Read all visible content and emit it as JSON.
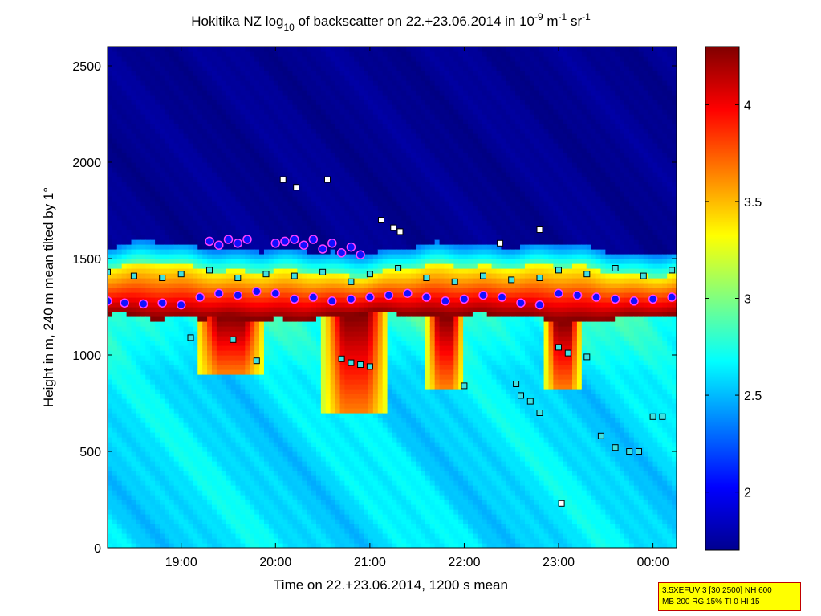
{
  "chart_data": {
    "type": "heatmap",
    "title_prefix": "Hokitika NZ log",
    "title_sub": "10",
    "title_middle": " of backscatter on 22.+23.06.2014 in 10",
    "title_exp1": "-9",
    "title_unit1": " m",
    "title_exp2": "-1",
    "title_unit2": " sr",
    "title_exp3": "-1",
    "xlabel": "Time on 22.+23.06.2014, 1200 s mean",
    "ylabel": "Height in m, 240 m mean tilted by 1°",
    "x_hours": [
      18.22,
      24.25
    ],
    "ylim": [
      0,
      2600
    ],
    "x_ticks": [
      {
        "hour": 19,
        "label": "19:00"
      },
      {
        "hour": 20,
        "label": "20:00"
      },
      {
        "hour": 21,
        "label": "21:00"
      },
      {
        "hour": 22,
        "label": "22:00"
      },
      {
        "hour": 23,
        "label": "23:00"
      },
      {
        "hour": 24,
        "label": "00:00"
      }
    ],
    "y_ticks": [
      0,
      500,
      1000,
      1500,
      2000,
      2500
    ],
    "colorbar": {
      "range": [
        1.7,
        4.3
      ],
      "ticks": [
        2,
        2.5,
        3,
        3.5,
        4
      ],
      "tick_labels": [
        "2",
        "2.5",
        "3",
        "3.5",
        "4"
      ]
    },
    "layers": {
      "cloud_top_m": 1420,
      "cloud_base_m": 1200,
      "cloud_top_value": 2.9,
      "cloud_core_value": 4.3,
      "boundary_layer_value": 2.6,
      "free_troposphere_value": 1.75
    },
    "drizzle_fall_streaks": [
      {
        "start": 19.15,
        "end": 19.9,
        "bottom_m": 900
      },
      {
        "start": 20.5,
        "end": 21.2,
        "bottom_m": 700
      },
      {
        "start": 21.6,
        "end": 22.0,
        "bottom_m": 830
      },
      {
        "start": 22.85,
        "end": 23.25,
        "bottom_m": 820
      }
    ],
    "series": [
      {
        "name": "cloud base (blue circles)",
        "hours": [
          18.22,
          18.4,
          18.6,
          18.8,
          19.0,
          19.2,
          19.4,
          19.6,
          19.8,
          20.0,
          20.2,
          20.4,
          20.6,
          20.8,
          21.0,
          21.2,
          21.4,
          21.6,
          21.8,
          22.0,
          22.2,
          22.4,
          22.6,
          22.8,
          23.0,
          23.2,
          23.4,
          23.6,
          23.8,
          24.0,
          24.2
        ],
        "height_m": [
          1280,
          1270,
          1265,
          1270,
          1260,
          1300,
          1320,
          1310,
          1330,
          1320,
          1290,
          1300,
          1280,
          1290,
          1300,
          1310,
          1320,
          1300,
          1280,
          1290,
          1310,
          1300,
          1270,
          1260,
          1320,
          1310,
          1300,
          1290,
          1280,
          1290,
          1300
        ]
      },
      {
        "name": "upper cloud base (circles)",
        "hours": [
          19.3,
          19.4,
          19.5,
          19.6,
          19.7,
          20.0,
          20.1,
          20.2,
          20.3,
          20.4,
          20.5,
          20.6,
          20.7,
          20.8,
          20.9
        ],
        "height_m": [
          1590,
          1570,
          1600,
          1580,
          1600,
          1580,
          1590,
          1600,
          1570,
          1600,
          1550,
          1580,
          1530,
          1560,
          1520
        ]
      },
      {
        "name": "cloud top (cyan squares)",
        "hours": [
          18.22,
          18.5,
          18.8,
          19.0,
          19.3,
          19.6,
          19.9,
          20.2,
          20.5,
          20.8,
          21.0,
          21.3,
          21.6,
          21.9,
          22.2,
          22.5,
          22.8,
          23.0,
          23.3,
          23.6,
          23.9,
          24.2
        ],
        "height_m": [
          1430,
          1410,
          1400,
          1420,
          1440,
          1400,
          1420,
          1410,
          1430,
          1380,
          1420,
          1450,
          1400,
          1380,
          1410,
          1390,
          1400,
          1440,
          1420,
          1450,
          1410,
          1440
        ]
      },
      {
        "name": "lower detections (cyan squares)",
        "hours": [
          19.1,
          19.55,
          19.8,
          20.7,
          20.8,
          20.9,
          21.0,
          22.0,
          22.55,
          22.6,
          22.7,
          22.8,
          23.0,
          23.1,
          23.3,
          23.45,
          23.6,
          23.75,
          23.85,
          24.0,
          24.1
        ],
        "height_m": [
          1090,
          1080,
          970,
          980,
          960,
          950,
          940,
          840,
          850,
          790,
          760,
          700,
          1040,
          1010,
          990,
          580,
          520,
          500,
          500,
          680,
          680
        ]
      },
      {
        "name": "outliers (squares)",
        "hours": [
          20.08,
          20.22,
          20.55,
          21.12,
          21.25,
          21.32,
          22.38,
          22.8,
          23.03
        ],
        "height_m": [
          1910,
          1870,
          1910,
          1700,
          1660,
          1640,
          1580,
          1650,
          230
        ]
      }
    ],
    "annotations": [
      "3.5XEFUV 3 [30 2500] NH 600",
      "MB 200 RG 15% TI 0 HI 15"
    ]
  },
  "colors": {
    "background": "#ffffff",
    "info_box_fill": "#ffff00",
    "info_box_border": "#c00000"
  }
}
